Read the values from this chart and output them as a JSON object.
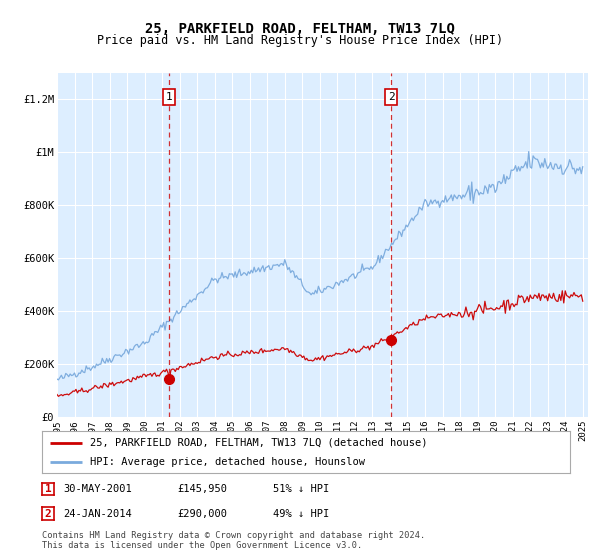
{
  "title": "25, PARKFIELD ROAD, FELTHAM, TW13 7LQ",
  "subtitle": "Price paid vs. HM Land Registry's House Price Index (HPI)",
  "ylim": [
    0,
    1300000
  ],
  "yticks": [
    0,
    200000,
    400000,
    600000,
    800000,
    1000000,
    1200000
  ],
  "ytick_labels": [
    "£0",
    "£200K",
    "£400K",
    "£600K",
    "£800K",
    "£1M",
    "£1.2M"
  ],
  "x_start_year": 1995,
  "x_end_year": 2025,
  "background_color": "#ffffff",
  "plot_bg_color": "#ddeeff",
  "shaded_bg_color": "#cce0f5",
  "grid_color": "#ffffff",
  "hpi_color": "#7aaadd",
  "price_color": "#cc0000",
  "transaction1": {
    "date_num": 2001.41,
    "price": 145950,
    "label": "1"
  },
  "transaction2": {
    "date_num": 2014.07,
    "price": 290000,
    "label": "2"
  },
  "legend_line1": "25, PARKFIELD ROAD, FELTHAM, TW13 7LQ (detached house)",
  "legend_line2": "HPI: Average price, detached house, Hounslow",
  "annotation1_label": "1",
  "annotation1_date": "30-MAY-2001",
  "annotation1_price": "£145,950",
  "annotation1_hpi": "51% ↓ HPI",
  "annotation2_label": "2",
  "annotation2_date": "24-JAN-2014",
  "annotation2_price": "£290,000",
  "annotation2_hpi": "49% ↓ HPI",
  "footer": "Contains HM Land Registry data © Crown copyright and database right 2024.\nThis data is licensed under the Open Government Licence v3.0.",
  "title_fontsize": 10,
  "subtitle_fontsize": 8.5
}
